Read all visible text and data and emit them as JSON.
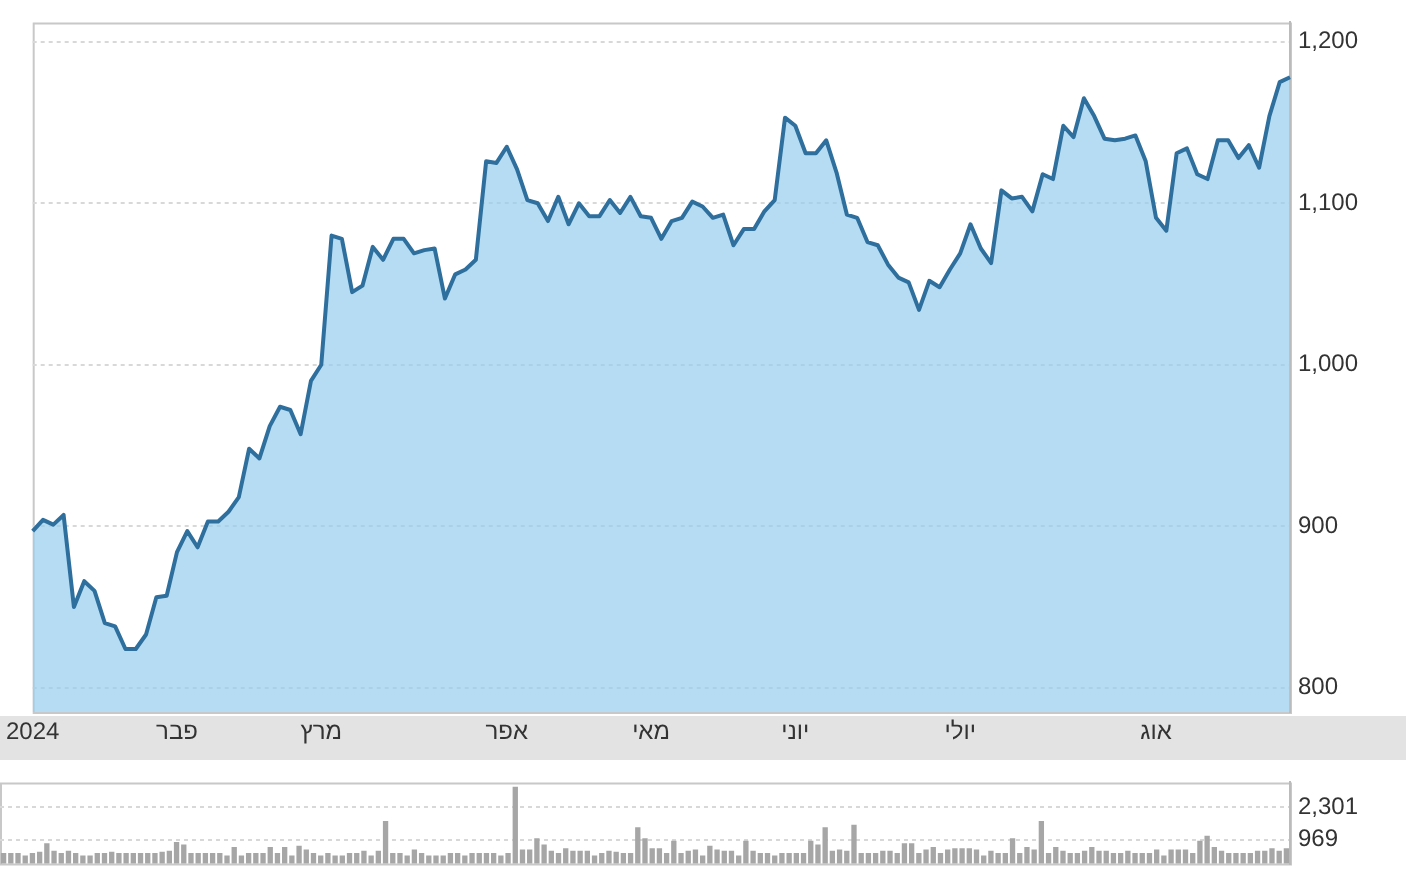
{
  "chart_data": [
    {
      "type": "area",
      "color": "#2e6f9e",
      "categories": [
        "2024",
        null,
        null,
        null,
        null,
        null,
        null,
        null,
        null,
        null,
        null,
        null,
        null,
        null,
        "פבר",
        null,
        null,
        null,
        null,
        null,
        null,
        null,
        null,
        null,
        null,
        null,
        null,
        null,
        "מרץ",
        null,
        null,
        null,
        null,
        null,
        null,
        null,
        null,
        null,
        null,
        null,
        null,
        null,
        null,
        null,
        null,
        null,
        "אפר",
        null,
        null,
        null,
        null,
        null,
        null,
        null,
        null,
        null,
        null,
        null,
        null,
        null,
        "מאי",
        null,
        null,
        null,
        null,
        null,
        null,
        null,
        null,
        null,
        null,
        null,
        null,
        null,
        "יוני",
        null,
        null,
        null,
        null,
        null,
        null,
        null,
        null,
        null,
        null,
        null,
        null,
        null,
        null,
        null,
        "יולי",
        null,
        null,
        null,
        null,
        null,
        null,
        null,
        null,
        null,
        null,
        null,
        null,
        null,
        null,
        null,
        null,
        null,
        null,
        "אוג",
        null,
        null,
        null,
        null,
        null,
        null,
        null,
        null,
        null,
        null,
        null,
        null,
        null
      ],
      "values": [
        897,
        904,
        901,
        907,
        850,
        866,
        860,
        840,
        838,
        824,
        824,
        833,
        856,
        857,
        884,
        897,
        887,
        903,
        903,
        909,
        918,
        948,
        942,
        962,
        974,
        972,
        957,
        990,
        1000,
        1080,
        1078,
        1045,
        1049,
        1073,
        1065,
        1078,
        1078,
        1069,
        1071,
        1072,
        1041,
        1056,
        1059,
        1065,
        1126,
        1125,
        1135,
        1121,
        1102,
        1100,
        1089,
        1104,
        1087,
        1100,
        1092,
        1092,
        1102,
        1094,
        1104,
        1092,
        1091,
        1078,
        1089,
        1091,
        1101,
        1098,
        1091,
        1093,
        1074,
        1084,
        1084,
        1095,
        1102,
        1153,
        1148,
        1131,
        1131,
        1139,
        1119,
        1093,
        1091,
        1076,
        1074,
        1062,
        1054,
        1051,
        1034,
        1052,
        1048,
        1059,
        1069,
        1087,
        1072,
        1063,
        1108,
        1103,
        1104,
        1095,
        1118,
        1115,
        1148,
        1141,
        1165,
        1154,
        1140,
        1139,
        1140,
        1142,
        1126,
        1091,
        1083,
        1131,
        1134,
        1118,
        1115,
        1139,
        1139,
        1128,
        1136,
        1122,
        1154,
        1175,
        1178
      ],
      "ylim": [
        785,
        1212
      ],
      "yticks": [
        800,
        900,
        {
          "value": 1000,
          "label": "1,000"
        },
        {
          "value": 1100,
          "label": "1,100"
        },
        {
          "value": 1200,
          "label": "1,200"
        }
      ],
      "grid": "y",
      "legend": false
    },
    {
      "type": "bar",
      "color": "#a6a6a6",
      "tick_labels": "y",
      "categories": [
        null,
        null,
        null,
        null,
        null,
        null,
        null,
        null,
        null,
        null,
        null,
        null,
        null,
        null,
        null,
        null,
        null,
        null,
        null,
        null,
        null,
        null,
        null,
        null,
        null,
        null,
        null,
        null,
        null,
        null,
        null,
        null,
        null,
        null,
        null,
        null,
        null,
        null,
        null,
        null,
        null,
        null,
        null,
        null,
        null,
        null,
        null,
        null,
        null,
        null,
        null,
        null,
        null,
        null,
        null,
        null,
        null,
        null,
        null,
        null,
        null,
        null,
        null,
        null,
        null,
        null,
        null,
        null,
        null,
        null,
        null,
        null,
        null,
        null,
        null,
        null,
        null,
        null,
        null,
        null,
        null,
        null,
        null,
        null,
        null,
        null,
        null,
        null,
        null,
        null,
        null,
        null,
        null,
        null,
        null,
        null,
        null,
        null,
        null,
        null,
        null,
        null,
        null,
        null,
        null,
        null,
        null,
        null,
        null,
        null,
        null,
        null,
        null,
        null,
        null,
        null,
        null,
        null,
        null,
        null,
        null,
        null,
        null,
        null,
        null,
        null,
        null,
        null,
        null,
        null,
        null,
        null,
        null,
        null,
        null,
        null,
        null,
        null,
        null,
        null,
        null,
        null,
        null,
        null,
        null,
        null,
        null,
        null,
        null,
        null,
        null,
        null,
        null,
        null,
        null,
        null,
        null,
        null,
        null,
        null,
        null,
        null,
        null,
        null,
        null,
        null,
        null,
        null,
        null,
        null,
        null,
        null,
        null,
        null,
        null,
        null,
        null,
        null,
        null
      ],
      "values": [
        400,
        400,
        400,
        300,
        400,
        450,
        800,
        500,
        400,
        500,
        400,
        300,
        300,
        400,
        400,
        450,
        400,
        400,
        400,
        400,
        400,
        400,
        450,
        500,
        850,
        750,
        400,
        400,
        400,
        400,
        400,
        300,
        650,
        300,
        400,
        400,
        400,
        650,
        400,
        650,
        300,
        700,
        550,
        400,
        300,
        400,
        300,
        300,
        400,
        400,
        500,
        300,
        500,
        1700,
        400,
        400,
        300,
        550,
        400,
        300,
        300,
        300,
        400,
        400,
        300,
        400,
        400,
        400,
        400,
        300,
        400,
        3100,
        550,
        550,
        1000,
        750,
        500,
        400,
        600,
        500,
        500,
        500,
        300,
        400,
        500,
        450,
        400,
        400,
        1450,
        1000,
        600,
        600,
        400,
        900,
        400,
        500,
        550,
        300,
        700,
        550,
        500,
        500,
        300,
        900,
        500,
        400,
        400,
        300,
        400,
        400,
        400,
        400,
        900,
        750,
        1450,
        500,
        550,
        500,
        1550,
        400,
        400,
        400,
        500,
        500,
        400,
        800,
        800,
        400,
        550,
        650,
        400,
        550,
        600,
        600,
        600,
        550,
        300,
        500,
        400,
        400,
        1000,
        400,
        650,
        550,
        1700,
        400,
        650,
        500,
        400,
        400,
        500,
        650,
        500,
        500,
        400,
        400,
        500,
        400,
        400,
        400,
        550,
        300,
        550,
        550,
        550,
        400,
        900,
        1100,
        650,
        500,
        400,
        400,
        400,
        400,
        500,
        500,
        600,
        500,
        600
      ],
      "ylim": [
        0,
        3300
      ],
      "yticks": [
        {
          "value": 969,
          "label": "969"
        },
        {
          "value": 2301,
          "label": "2,301"
        }
      ],
      "grid": "y",
      "legend": false
    }
  ]
}
